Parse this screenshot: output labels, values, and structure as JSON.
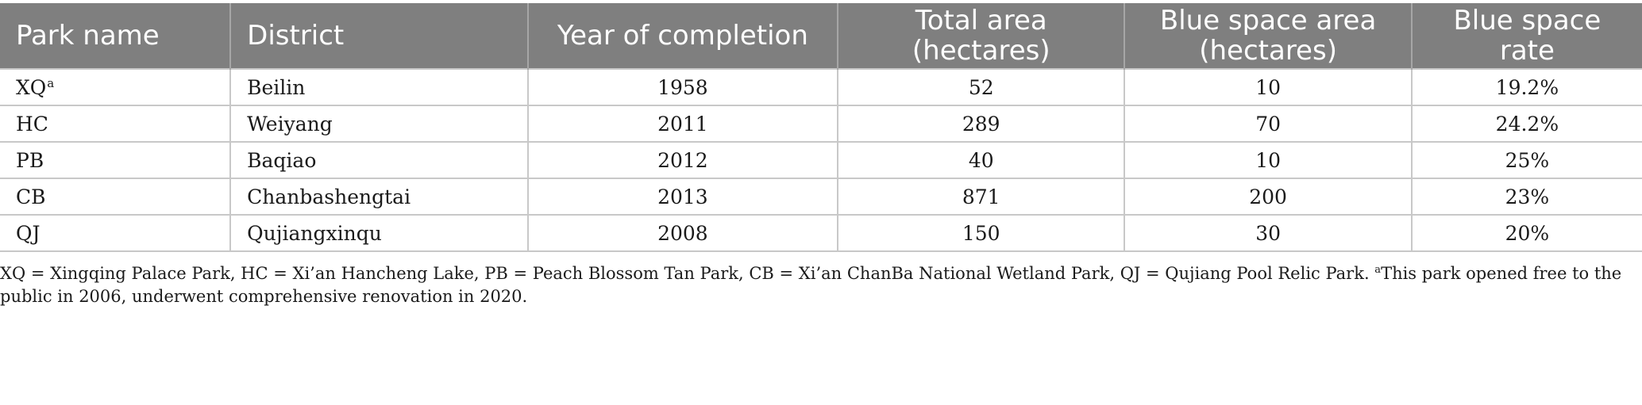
{
  "table": {
    "headers": [
      {
        "label": "Park name",
        "align": "left"
      },
      {
        "label": "District",
        "align": "left"
      },
      {
        "label": "Year of completion",
        "align": "center"
      },
      {
        "label": "Total area (hectares)",
        "line1": "Total area",
        "line2": "(hectares)",
        "align": "center"
      },
      {
        "label": "Blue space area (hectares)",
        "line1": "Blue space area",
        "line2": "(hectares)",
        "align": "center"
      },
      {
        "label": "Blue space rate",
        "line1": "Blue space",
        "line2": "rate",
        "align": "center"
      }
    ],
    "rows": [
      {
        "park": "XQ",
        "park_sup": "a",
        "district": "Beilin",
        "year": "1958",
        "total_area": "52",
        "blue_area": "10",
        "blue_rate": "19.2%"
      },
      {
        "park": "HC",
        "park_sup": "",
        "district": "Weiyang",
        "year": "2011",
        "total_area": "289",
        "blue_area": "70",
        "blue_rate": "24.2%"
      },
      {
        "park": "PB",
        "park_sup": "",
        "district": "Baqiao",
        "year": "2012",
        "total_area": "40",
        "blue_area": "10",
        "blue_rate": "25%"
      },
      {
        "park": "CB",
        "park_sup": "",
        "district": "Chanbashengtai",
        "year": "2013",
        "total_area": "871",
        "blue_area": "200",
        "blue_rate": "23%"
      },
      {
        "park": "QJ",
        "park_sup": "",
        "district": "Qujiangxinqu",
        "year": "2008",
        "total_area": "150",
        "blue_area": "30",
        "blue_rate": "20%"
      }
    ]
  },
  "footnote": {
    "text": "XQ = Xingqing Palace Park, HC = Xi’an Hancheng Lake, PB = Peach Blossom Tan Park, CB = Xi’an ChanBa National Wetland Park, QJ = Qujiang Pool Relic Park. ",
    "marker": "a",
    "note": "This park opened free to the public in 2006, underwent comprehensive renovation in 2020."
  },
  "colors": {
    "header_bg": "#7f7f7f",
    "header_text": "#ffffff",
    "grid": "#c8c8c8"
  }
}
